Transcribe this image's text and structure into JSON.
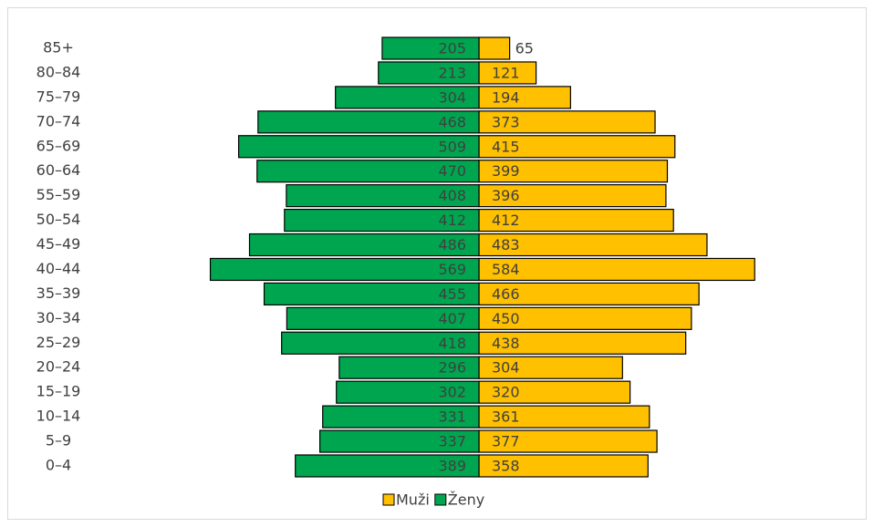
{
  "chart_data": {
    "type": "bar",
    "orientation": "pyramid",
    "categories": [
      "85+",
      "80–84",
      "75–79",
      "70–74",
      "65–69",
      "60–64",
      "55–59",
      "50–54",
      "45–49",
      "40–44",
      "35–39",
      "30–34",
      "25–29",
      "20–24",
      "15–19",
      "10–14",
      "5–9",
      "0–4"
    ],
    "series": [
      {
        "name": "Muži",
        "color": "#ffc000",
        "values": [
          65,
          121,
          194,
          373,
          415,
          399,
          396,
          412,
          483,
          584,
          466,
          450,
          438,
          304,
          320,
          361,
          377,
          358
        ]
      },
      {
        "name": "Ženy",
        "color": "#00a64f",
        "values": [
          205,
          213,
          304,
          468,
          509,
          470,
          408,
          412,
          486,
          569,
          455,
          407,
          418,
          296,
          302,
          331,
          337,
          389
        ]
      }
    ],
    "legend": "bottom"
  }
}
